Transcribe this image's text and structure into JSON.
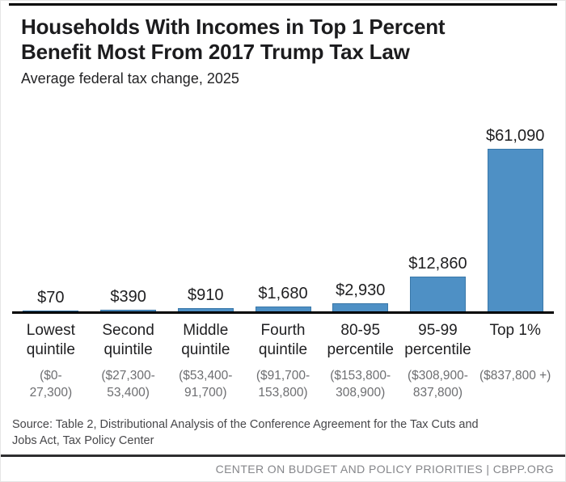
{
  "header": {
    "title": "Households With Incomes in Top 1 Percent\nBenefit Most From 2017 Trump Tax Law",
    "subtitle": "Average federal tax change, 2025"
  },
  "chart_data": {
    "type": "bar",
    "title": "Households With Incomes in Top 1 Percent Benefit Most From 2017 Trump Tax Law",
    "subtitle": "Average federal tax change, 2025",
    "categories": [
      "Lowest\nquintile",
      "Second\nquintile",
      "Middle\nquintile",
      "Fourth\nquintile",
      "80-95\npercentile",
      "95-99\npercentile",
      "Top 1%"
    ],
    "income_ranges": [
      "($0-\n27,300)",
      "($27,300-\n53,400)",
      "($53,400-\n91,700)",
      "($91,700-\n153,800)",
      "($153,800-\n308,900)",
      "($308,900-\n837,800)",
      "($837,800 +)"
    ],
    "values": [
      70,
      390,
      910,
      1680,
      2930,
      12860,
      61090
    ],
    "value_labels": [
      "$70",
      "$390",
      "$910",
      "$1,680",
      "$2,930",
      "$12,860",
      "$61,090"
    ],
    "xlabel": "",
    "ylabel": "",
    "ylim": [
      0,
      61090
    ],
    "grid": false,
    "legend": false,
    "bar_color": "#4e90c5"
  },
  "colors": {
    "bar": "#4e90c5",
    "bar_border": "#3a78a9",
    "axis": "#000000",
    "range_text": "#6d6e71",
    "footer_text": "#85868a"
  },
  "footer": {
    "source": "Source: Table 2, Distributional Analysis of the Conference Agreement for the Tax Cuts and\nJobs Act, Tax Policy Center",
    "branding": "CENTER ON BUDGET AND POLICY PRIORITIES | CBPP.ORG"
  }
}
